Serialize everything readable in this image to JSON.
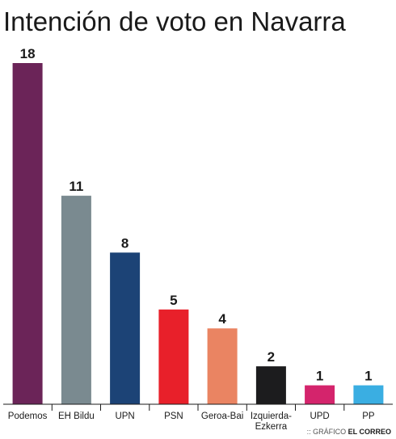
{
  "chart_data": {
    "type": "bar",
    "title": "Intención de voto en Navarra",
    "categories": [
      "Podemos",
      "EH Bildu",
      "UPN",
      "PSN",
      "Geroa-Bai",
      "Izquierda-\nEzkerra",
      "UPD",
      "PP"
    ],
    "values": [
      18,
      11,
      8,
      5,
      4,
      2,
      1,
      1
    ],
    "colors": [
      "#6b2458",
      "#7a8a90",
      "#1c4376",
      "#e8202a",
      "#ea8462",
      "#1c1c1e",
      "#d4246c",
      "#3aaee2"
    ],
    "ylim": [
      0,
      18
    ],
    "grid": false,
    "xlabel": "",
    "ylabel": ""
  },
  "credit": {
    "prefix": ":: GRÁFICO ",
    "brand": "EL CORREO"
  }
}
